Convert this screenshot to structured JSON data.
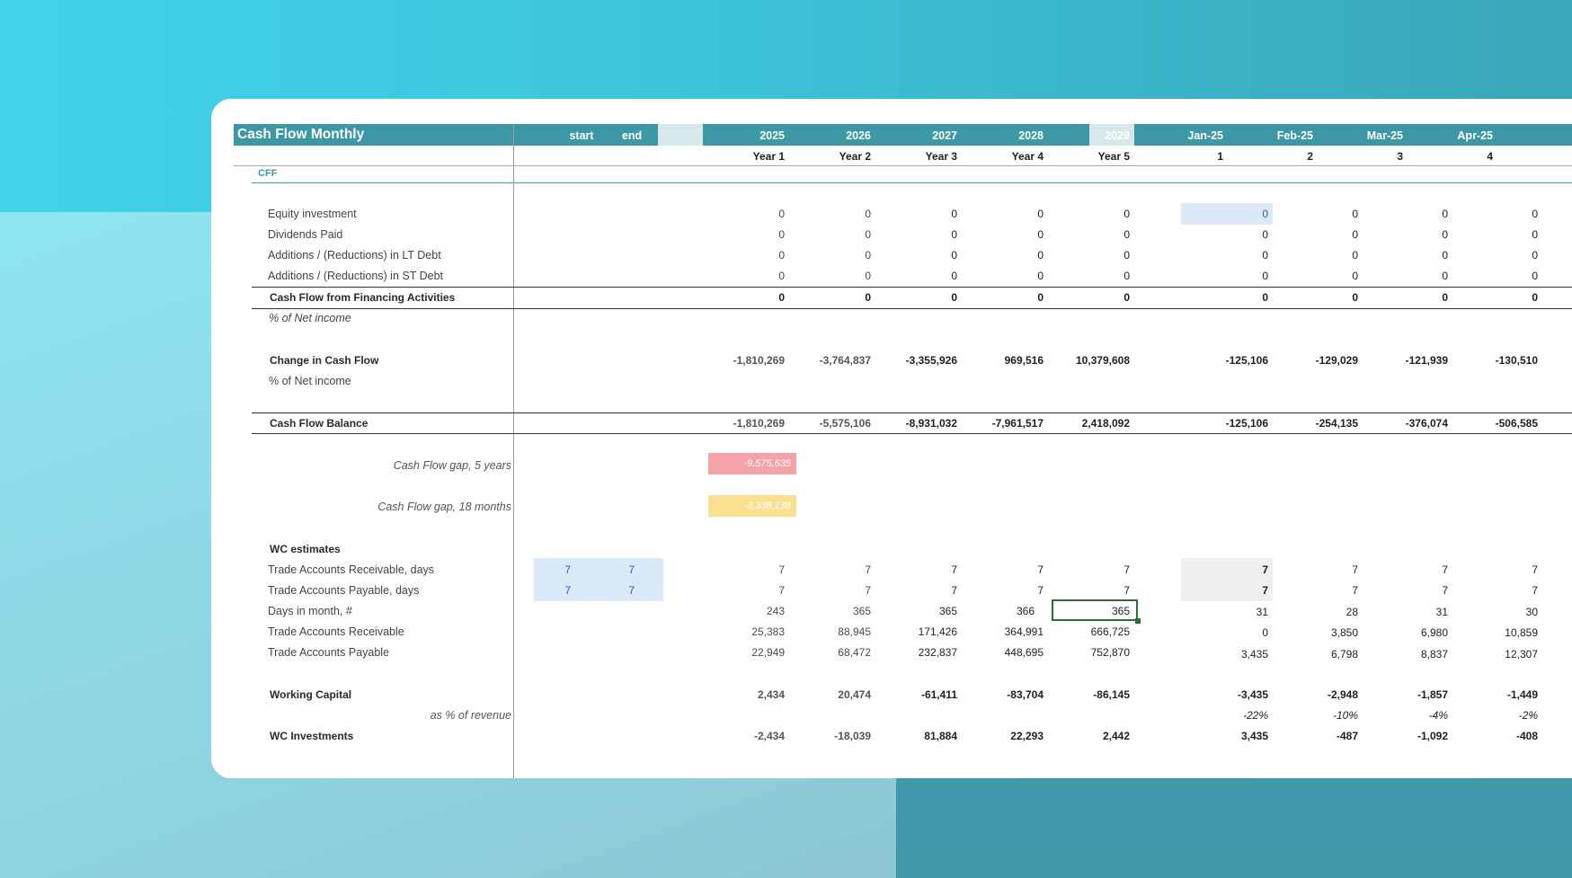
{
  "title": "Cash Flow Monthly",
  "header": {
    "start": "start",
    "end": "end",
    "years": [
      "2025",
      "2026",
      "2027",
      "2028",
      "2029"
    ],
    "year_labels": [
      "Year 1",
      "Year 2",
      "Year 3",
      "Year 4",
      "Year 5"
    ],
    "months": [
      "Jan-25",
      "Feb-25",
      "Mar-25",
      "Apr-25"
    ],
    "month_numbers": [
      "1",
      "2",
      "3",
      "4"
    ]
  },
  "section_label": "CFF",
  "rows": {
    "equity": {
      "label": "Equity investment",
      "years": [
        "0",
        "0",
        "0",
        "0",
        "0"
      ],
      "months": [
        "0",
        "0",
        "0",
        "0"
      ]
    },
    "dividends": {
      "label": "Dividends Paid",
      "years": [
        "0",
        "0",
        "0",
        "0",
        "0"
      ],
      "months": [
        "0",
        "0",
        "0",
        "0"
      ]
    },
    "lt_debt": {
      "label": "Additions / (Reductions) in LT Debt",
      "years": [
        "0",
        "0",
        "0",
        "0",
        "0"
      ],
      "months": [
        "0",
        "0",
        "0",
        "0"
      ]
    },
    "st_debt": {
      "label": "Additions / (Reductions) in ST Debt",
      "years": [
        "0",
        "0",
        "0",
        "0",
        "0"
      ],
      "months": [
        "0",
        "0",
        "0",
        "0"
      ]
    },
    "cff": {
      "label": "Cash Flow from Financing Activities",
      "years": [
        "0",
        "0",
        "0",
        "0",
        "0"
      ],
      "months": [
        "0",
        "0",
        "0",
        "0"
      ]
    },
    "pct_net_income_1": {
      "label": "% of Net income"
    },
    "change_cf": {
      "label": "Change in Cash Flow",
      "years": [
        "-1,810,269",
        "-3,764,837",
        "-3,355,926",
        "969,516",
        "10,379,608"
      ],
      "months": [
        "-125,106",
        "-129,029",
        "-121,939",
        "-130,510"
      ]
    },
    "pct_net_income_2": {
      "label": "% of Net income"
    },
    "cf_balance": {
      "label": "Cash Flow Balance",
      "years": [
        "-1,810,269",
        "-5,575,106",
        "-8,931,032",
        "-7,961,517",
        "2,418,092"
      ],
      "months": [
        "-125,106",
        "-254,135",
        "-376,074",
        "-506,585"
      ]
    },
    "gap_5y": {
      "label": "Cash Flow gap, 5 years",
      "value": "-9,575,635"
    },
    "gap_18m": {
      "label": "Cash Flow gap, 18 months",
      "value": "-3,338,138"
    },
    "wc_estimates": {
      "label": "WC estimates"
    },
    "ar_days": {
      "label": "Trade Accounts Receivable, days",
      "start": "7",
      "end": "7",
      "years": [
        "7",
        "7",
        "7",
        "7",
        "7"
      ],
      "months": [
        "7",
        "7",
        "7",
        "7"
      ]
    },
    "ap_days": {
      "label": "Trade Accounts Payable, days",
      "start": "7",
      "end": "7",
      "years": [
        "7",
        "7",
        "7",
        "7",
        "7"
      ],
      "months": [
        "7",
        "7",
        "7",
        "7"
      ]
    },
    "days_month": {
      "label": "Days in month, #",
      "years": [
        "243",
        "365",
        "365",
        "366",
        "365"
      ],
      "months": [
        "31",
        "28",
        "31",
        "30"
      ]
    },
    "ar": {
      "label": "Trade Accounts Receivable",
      "years": [
        "25,383",
        "88,945",
        "171,426",
        "364,991",
        "666,725"
      ],
      "months": [
        "0",
        "3,850",
        "6,980",
        "10,859"
      ]
    },
    "ap": {
      "label": "Trade Accounts Payable",
      "years": [
        "22,949",
        "68,472",
        "232,837",
        "448,695",
        "752,870"
      ],
      "months": [
        "3,435",
        "6,798",
        "8,837",
        "12,307"
      ]
    },
    "wc": {
      "label": "Working Capital",
      "years": [
        "2,434",
        "20,474",
        "-61,411",
        "-83,704",
        "-86,145"
      ],
      "months": [
        "-3,435",
        "-2,948",
        "-1,857",
        "-1,449"
      ]
    },
    "wc_pct_rev": {
      "label": "as % of revenue",
      "months": [
        "-22%",
        "-10%",
        "-4%",
        "-2%"
      ]
    },
    "wc_inv": {
      "label": "WC Investments",
      "years": [
        "-2,434",
        "-18,039",
        "81,884",
        "22,293",
        "2,442"
      ],
      "months": [
        "3,435",
        "-487",
        "-1,092",
        "-408"
      ]
    }
  },
  "colors": {
    "header": "#3d97a5",
    "gap_5y_fill": "#f4a3a8",
    "gap_18m_fill": "#fbe08f",
    "input_fill": "#dce9f8",
    "selected_border": "#2e6b3e"
  }
}
